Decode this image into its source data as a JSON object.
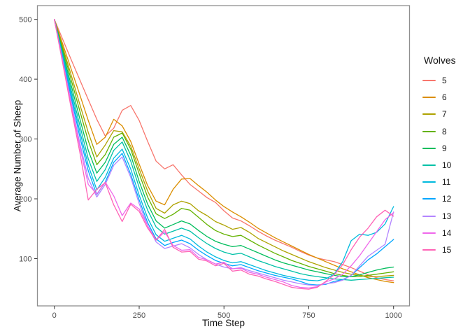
{
  "chart_data": {
    "type": "line",
    "title": "",
    "xlabel": "Time Step",
    "ylabel": "Average Number of Sheep",
    "legend_title": "Wolves",
    "legend_position": "right",
    "grid": false,
    "background": "#ffffff",
    "panel_border_color": "#8f8f8f",
    "tick_color": "#333333",
    "tick_label_color": "#4d4d4d",
    "xlim": [
      -50,
      1047
    ],
    "ylim": [
      21,
      523
    ],
    "x_ticks": [
      0,
      250,
      500,
      750,
      1000
    ],
    "y_ticks": [
      100,
      200,
      300,
      400,
      500
    ],
    "x": [
      0,
      25,
      50,
      75,
      100,
      125,
      150,
      175,
      200,
      225,
      250,
      275,
      300,
      325,
      350,
      375,
      400,
      425,
      450,
      475,
      500,
      525,
      550,
      575,
      600,
      625,
      650,
      675,
      700,
      725,
      750,
      775,
      800,
      825,
      850,
      875,
      900,
      925,
      950,
      975,
      1000
    ],
    "series": [
      {
        "name": "5",
        "color": "#F8766D",
        "values": [
          500,
          466,
          432,
          399,
          366,
          333,
          305,
          318,
          348,
          356,
          331,
          296,
          263,
          250,
          257,
          240,
          224,
          213,
          202,
          194,
          180,
          168,
          163,
          155,
          146,
          138,
          131,
          125,
          119,
          112,
          106,
          101,
          98,
          95,
          90,
          85,
          79,
          73,
          68,
          65,
          63
        ]
      },
      {
        "name": "6",
        "color": "#DB8E00",
        "values": [
          500,
          458,
          416,
          374,
          331,
          291,
          303,
          333,
          322,
          296,
          258,
          222,
          196,
          190,
          216,
          233,
          234,
          222,
          211,
          198,
          187,
          178,
          170,
          161,
          151,
          143,
          135,
          128,
          121,
          114,
          107,
          101,
          95,
          89,
          83,
          78,
          73,
          68,
          65,
          62,
          60
        ]
      },
      {
        "name": "7",
        "color": "#AEA200",
        "values": [
          500,
          453,
          406,
          358,
          311,
          270,
          290,
          314,
          312,
          288,
          250,
          213,
          184,
          176,
          190,
          196,
          192,
          180,
          172,
          162,
          156,
          149,
          152,
          144,
          134,
          127,
          120,
          113,
          107,
          101,
          95,
          90,
          85,
          81,
          77,
          74,
          72,
          70,
          70,
          71,
          72
        ]
      },
      {
        "name": "8",
        "color": "#64B200",
        "values": [
          500,
          449,
          398,
          347,
          297,
          257,
          274,
          303,
          310,
          283,
          242,
          203,
          175,
          167,
          174,
          184,
          181,
          169,
          157,
          147,
          141,
          137,
          139,
          131,
          123,
          116,
          109,
          103,
          97,
          92,
          87,
          83,
          79,
          75,
          72,
          70,
          70,
          72,
          74,
          76,
          78
        ]
      },
      {
        "name": "9",
        "color": "#00BD5C",
        "values": [
          500,
          444,
          389,
          334,
          281,
          243,
          261,
          291,
          303,
          273,
          229,
          191,
          163,
          151,
          157,
          163,
          158,
          147,
          137,
          129,
          124,
          120,
          122,
          116,
          110,
          104,
          98,
          93,
          89,
          85,
          81,
          78,
          75,
          72,
          70,
          70,
          73,
          77,
          81,
          84,
          86
        ]
      },
      {
        "name": "10",
        "color": "#00C1A7",
        "values": [
          500,
          440,
          381,
          323,
          267,
          229,
          249,
          281,
          295,
          263,
          219,
          181,
          153,
          141,
          146,
          151,
          146,
          135,
          125,
          117,
          111,
          107,
          109,
          103,
          97,
          92,
          87,
          83,
          79,
          75,
          72,
          70,
          68,
          66,
          65,
          64,
          65,
          66,
          67,
          68,
          69
        ]
      },
      {
        "name": "11",
        "color": "#00BADE",
        "values": [
          500,
          437,
          374,
          313,
          256,
          215,
          236,
          268,
          283,
          250,
          206,
          168,
          140,
          129,
          134,
          139,
          133,
          121,
          111,
          103,
          97,
          93,
          95,
          90,
          85,
          80,
          76,
          72,
          69,
          66,
          64,
          63,
          66,
          74,
          95,
          130,
          141,
          139,
          144,
          158,
          187
        ]
      },
      {
        "name": "12",
        "color": "#00A6FF",
        "values": [
          500,
          434,
          368,
          304,
          247,
          207,
          228,
          261,
          276,
          241,
          198,
          160,
          133,
          122,
          127,
          131,
          125,
          114,
          105,
          97,
          92,
          88,
          90,
          85,
          80,
          76,
          72,
          69,
          66,
          62,
          57,
          56,
          57,
          62,
          65,
          72,
          85,
          98,
          108,
          120,
          132
        ]
      },
      {
        "name": "13",
        "color": "#B385FF",
        "values": [
          500,
          430,
          360,
          293,
          234,
          203,
          224,
          256,
          270,
          236,
          192,
          155,
          128,
          117,
          121,
          125,
          118,
          107,
          98,
          91,
          86,
          83,
          85,
          80,
          76,
          72,
          68,
          64,
          61,
          58,
          56,
          55,
          58,
          60,
          64,
          72,
          88,
          104,
          114,
          124,
          178
        ]
      },
      {
        "name": "14",
        "color": "#EF67EB",
        "values": [
          500,
          428,
          356,
          287,
          224,
          208,
          228,
          205,
          172,
          193,
          183,
          155,
          131,
          145,
          122,
          114,
          115,
          102,
          98,
          91,
          94,
          83,
          84,
          77,
          74,
          69,
          65,
          61,
          55,
          52,
          51,
          53,
          61,
          66,
          74,
          88,
          105,
          125,
          145,
          165,
          177
        ]
      },
      {
        "name": "15",
        "color": "#FF63B6",
        "values": [
          500,
          425,
          350,
          278,
          198,
          216,
          227,
          190,
          162,
          191,
          179,
          151,
          131,
          149,
          119,
          111,
          112,
          99,
          96,
          88,
          92,
          79,
          81,
          74,
          71,
          66,
          62,
          57,
          52,
          50,
          49,
          52,
          62,
          73,
          90,
          115,
          136,
          151,
          170,
          181,
          171
        ]
      }
    ]
  }
}
